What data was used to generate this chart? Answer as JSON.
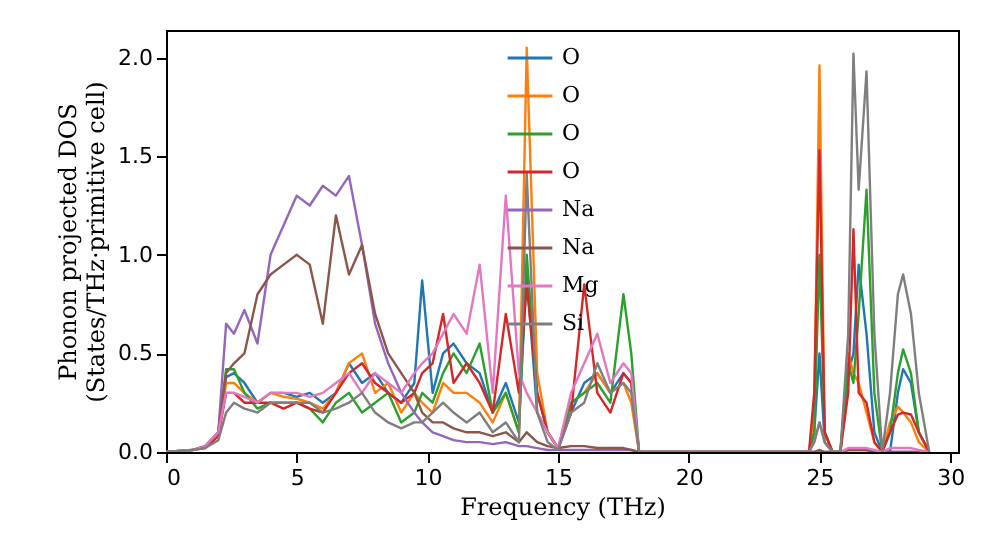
{
  "chart_data": {
    "type": "line",
    "xlabel": "Frequency (THz)",
    "ylabel": "Phonon projected DOS\n(States/THz·primitive cell)",
    "xlim": [
      0,
      30.3
    ],
    "ylim": [
      0,
      2.14
    ],
    "xticks": [
      0,
      5,
      10,
      15,
      20,
      25,
      30
    ],
    "yticks": [
      {
        "value": 0,
        "label": "0.0"
      },
      {
        "value": 0.5,
        "label": "0.5"
      },
      {
        "value": 1,
        "label": "1.0"
      },
      {
        "value": 1.5,
        "label": "1.5"
      },
      {
        "value": 2,
        "label": "2.0"
      }
    ],
    "grid": false,
    "legend": "top",
    "marker": "none",
    "line_style": "solid",
    "x": [
      0,
      1,
      1.5,
      2,
      2.3,
      2.6,
      3,
      3.5,
      4,
      4.5,
      5,
      5.5,
      6,
      6.5,
      7,
      7.5,
      8,
      8.5,
      9,
      9.5,
      9.8,
      10.2,
      10.6,
      11,
      11.5,
      12,
      12.5,
      13,
      13.5,
      13.8,
      14.2,
      14.6,
      15,
      15.5,
      16,
      16.5,
      17,
      17.5,
      17.8,
      18.1,
      24.6,
      24.8,
      25,
      25.2,
      25.5,
      25.8,
      26.1,
      26.3,
      26.5,
      26.8,
      27.1,
      27.4,
      27.7,
      28,
      28.2,
      28.5,
      28.8,
      29.2
    ],
    "series": [
      {
        "name": "O",
        "color": "#1f77b4",
        "values": [
          null,
          null,
          null,
          0.1,
          0.38,
          0.4,
          0.35,
          0.25,
          0.3,
          0.3,
          0.28,
          0.3,
          0.25,
          0.3,
          0.45,
          0.35,
          0.4,
          0.3,
          0.25,
          0.35,
          0.87,
          0.3,
          0.5,
          0.55,
          0.45,
          0.4,
          0.2,
          0.35,
          0.15,
          0.9,
          0.2,
          0.1,
          0.02,
          0.2,
          0.35,
          0.4,
          0.3,
          0.4,
          0.35,
          0,
          0,
          0.1,
          0.5,
          0.05,
          0,
          0,
          0.4,
          0.5,
          0.95,
          0.6,
          0.1,
          0,
          0,
          0.3,
          0.42,
          0.35,
          0.1,
          0
        ]
      },
      {
        "name": "O",
        "color": "#ff7f0e",
        "values": [
          null,
          null,
          null,
          0.08,
          0.35,
          0.35,
          0.3,
          0.25,
          0.3,
          0.28,
          0.27,
          0.25,
          0.22,
          0.3,
          0.45,
          0.5,
          0.3,
          0.35,
          0.2,
          0.3,
          0.25,
          0.2,
          0.35,
          0.3,
          0.3,
          0.25,
          0.15,
          0.3,
          0.1,
          2.05,
          0.4,
          0.1,
          0.02,
          0.25,
          0.3,
          0.4,
          0.3,
          0.35,
          0.25,
          0,
          0,
          0.2,
          1.96,
          0.1,
          0,
          0,
          0.5,
          0.4,
          0.35,
          0.2,
          0.05,
          0,
          0.15,
          0.23,
          0.2,
          0.15,
          0.05,
          0
        ]
      },
      {
        "name": "O",
        "color": "#2ca02c",
        "values": [
          null,
          null,
          null,
          0.1,
          0.42,
          0.42,
          0.3,
          0.22,
          0.25,
          0.25,
          0.25,
          0.22,
          0.15,
          0.25,
          0.3,
          0.2,
          0.25,
          0.3,
          0.15,
          0.2,
          0.3,
          0.25,
          0.4,
          0.5,
          0.4,
          0.55,
          0.2,
          0.3,
          0.1,
          1.0,
          0.3,
          0.1,
          0.02,
          0.25,
          0.3,
          0.35,
          0.25,
          0.8,
          0.5,
          0,
          0,
          0.1,
          1.0,
          0.1,
          0,
          0,
          0.45,
          0.35,
          0.7,
          1.33,
          0.3,
          0,
          0.1,
          0.4,
          0.52,
          0.4,
          0.1,
          0
        ]
      },
      {
        "name": "O",
        "color": "#d62728",
        "values": [
          0,
          0.01,
          0.02,
          0.08,
          0.3,
          0.3,
          0.25,
          0.25,
          0.25,
          0.22,
          0.25,
          0.22,
          0.2,
          0.3,
          0.4,
          0.45,
          0.35,
          0.3,
          0.25,
          0.3,
          0.4,
          0.45,
          0.7,
          0.35,
          0.45,
          0.35,
          0.2,
          0.7,
          0.3,
          0.85,
          0.3,
          0.1,
          0.02,
          0.2,
          0.85,
          0.3,
          0.2,
          0.4,
          0.35,
          0,
          0,
          0.3,
          1.53,
          0.1,
          0,
          0,
          0.3,
          1.13,
          0.3,
          0.25,
          0.05,
          0,
          0.1,
          0.19,
          0.2,
          0.19,
          0.1,
          0
        ]
      },
      {
        "name": "Na",
        "color": "#9467bd",
        "values": [
          0,
          0.01,
          0.03,
          0.1,
          0.65,
          0.6,
          0.72,
          0.55,
          1.0,
          1.15,
          1.3,
          1.25,
          1.35,
          1.3,
          1.4,
          1.05,
          0.65,
          0.45,
          0.3,
          0.2,
          0.15,
          0.1,
          0.08,
          0.06,
          0.05,
          0.05,
          0.04,
          0.05,
          0.03,
          0.03,
          0.02,
          0.01,
          0.01,
          0.01,
          0.01,
          0.01,
          0.01,
          0.01,
          0.01,
          0,
          0,
          0,
          0.01,
          0,
          0,
          0,
          0.01,
          0.01,
          0.01,
          0.01,
          0,
          0,
          0,
          0,
          0,
          0,
          0,
          0
        ]
      },
      {
        "name": "Na",
        "color": "#8c564b",
        "values": [
          0,
          0.01,
          0.03,
          0.1,
          0.4,
          0.45,
          0.5,
          0.8,
          0.9,
          0.95,
          1.0,
          0.95,
          0.65,
          1.2,
          0.9,
          1.05,
          0.7,
          0.5,
          0.4,
          0.3,
          0.2,
          0.15,
          0.15,
          0.12,
          0.1,
          0.1,
          0.08,
          0.1,
          0.05,
          0.1,
          0.05,
          0.03,
          0.02,
          0.03,
          0.03,
          0.02,
          0.02,
          0.02,
          0.01,
          0,
          0,
          0,
          0.01,
          0,
          0,
          0,
          0.01,
          0.01,
          0.01,
          0.01,
          0,
          0,
          0,
          0,
          0,
          0,
          0,
          0
        ]
      },
      {
        "name": "Mg",
        "color": "#e377c2",
        "values": [
          0,
          0.01,
          0.03,
          0.1,
          0.3,
          0.3,
          0.28,
          0.25,
          0.3,
          0.3,
          0.3,
          0.28,
          0.3,
          0.35,
          0.4,
          0.3,
          0.4,
          0.35,
          0.3,
          0.4,
          0.45,
          0.5,
          0.6,
          0.7,
          0.6,
          0.95,
          0.3,
          1.3,
          0.4,
          0.3,
          0.2,
          0.1,
          0.02,
          0.3,
          0.45,
          0.6,
          0.35,
          0.45,
          0.4,
          0,
          0,
          0.05,
          0.15,
          0.05,
          0,
          0,
          0.02,
          0.02,
          0.02,
          0.02,
          0.01,
          0,
          0.02,
          0.02,
          0.02,
          0.02,
          0.01,
          0
        ]
      },
      {
        "name": "Si",
        "color": "#7f7f7f",
        "values": [
          0,
          0.01,
          0.02,
          0.06,
          0.2,
          0.25,
          0.22,
          0.2,
          0.25,
          0.25,
          0.25,
          0.25,
          0.2,
          0.22,
          0.25,
          0.3,
          0.2,
          0.15,
          0.12,
          0.15,
          0.15,
          0.2,
          0.25,
          0.2,
          0.15,
          0.2,
          0.1,
          0.15,
          0.05,
          1.41,
          0.2,
          0.05,
          0.01,
          0.2,
          0.25,
          0.45,
          0.3,
          0.35,
          0.3,
          0,
          0,
          0.05,
          0.15,
          0.05,
          0,
          0,
          0.6,
          2.02,
          1.33,
          1.93,
          0.6,
          0,
          0.3,
          0.8,
          0.9,
          0.7,
          0.3,
          0
        ]
      }
    ]
  }
}
